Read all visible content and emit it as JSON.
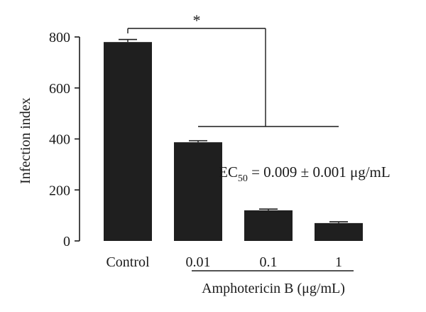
{
  "chart_data": {
    "type": "bar",
    "categories": [
      "Control",
      "0.01",
      "0.1",
      "1"
    ],
    "values": [
      780,
      387,
      120,
      70
    ],
    "errors": [
      10,
      6,
      5,
      5
    ],
    "ylabel": "Infection index",
    "yticks": [
      0,
      200,
      400,
      600,
      800
    ],
    "ylim": [
      0,
      800
    ],
    "group_label": "Amphotericin B (μg/mL)",
    "significance": "*",
    "annotation": {
      "prefix": "EC",
      "subscript": "50",
      "value": " = 0.009 ± 0.001 μg/mL"
    },
    "grid": false,
    "legend": "none",
    "colors": {
      "bar": "#1f1f1f",
      "axis": "#1a1a1a",
      "text": "#1a1a1a"
    }
  }
}
